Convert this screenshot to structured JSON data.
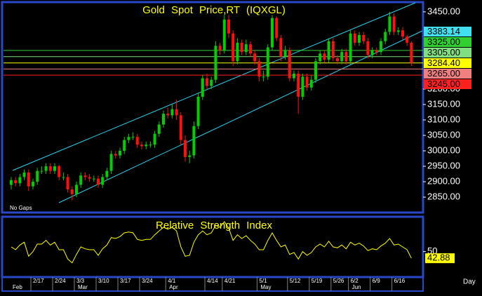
{
  "chart_data": [
    {
      "type": "candlestick",
      "title": "Gold Spot Price,RT (IQXGL)",
      "note": "No Gaps",
      "x_unit": "Day",
      "categories": [
        null,
        null,
        null,
        null,
        null,
        "2/17",
        null,
        null,
        null,
        null,
        "2/24",
        null,
        null,
        null,
        null,
        "3/3",
        null,
        null,
        null,
        null,
        "3/10",
        null,
        null,
        null,
        null,
        "3/17",
        null,
        null,
        null,
        null,
        "3/24",
        null,
        null,
        null,
        null,
        null,
        "4/1",
        null,
        null,
        null,
        null,
        null,
        null,
        null,
        null,
        "4/14",
        null,
        null,
        null,
        "4/21",
        null,
        null,
        null,
        null,
        null,
        null,
        null,
        "5/1",
        null,
        null,
        null,
        null,
        null,
        null,
        "5/12",
        null,
        null,
        null,
        null,
        "5/19",
        null,
        null,
        null,
        null,
        "5/26",
        null,
        null,
        null,
        "6/2",
        null,
        null,
        null,
        null,
        "6/9",
        null,
        null,
        null,
        null,
        "6/16",
        null,
        null,
        null,
        null
      ],
      "months": [
        "Feb",
        null,
        null,
        null,
        null,
        null,
        null,
        null,
        null,
        null,
        null,
        null,
        null,
        null,
        null,
        "Mar",
        null,
        null,
        null,
        null,
        null,
        null,
        null,
        null,
        null,
        null,
        null,
        null,
        null,
        null,
        null,
        null,
        null,
        null,
        null,
        null,
        "Apr",
        null,
        null,
        null,
        null,
        null,
        null,
        null,
        null,
        null,
        null,
        null,
        null,
        null,
        null,
        null,
        null,
        null,
        null,
        null,
        null,
        "May",
        null,
        null,
        null,
        null,
        null,
        null,
        null,
        null,
        null,
        null,
        null,
        null,
        null,
        null,
        null,
        null,
        null,
        null,
        null,
        null,
        "Jun",
        null,
        null,
        null,
        null,
        null,
        null,
        null,
        null,
        null,
        null,
        null,
        null,
        null,
        null
      ],
      "open": [
        2890,
        2905,
        2895,
        2915,
        2930,
        2885,
        2900,
        2935,
        2935,
        2950,
        2935,
        2950,
        2915,
        2915,
        2875,
        2860,
        2890,
        2920,
        2915,
        2910,
        2910,
        2890,
        2915,
        2935,
        2990,
        2985,
        3000,
        3035,
        3045,
        3045,
        3020,
        3015,
        3020,
        3020,
        3055,
        3085,
        3120,
        3115,
        3135,
        3115,
        3035,
        2980,
        2985,
        3080,
        3175,
        3235,
        3210,
        3230,
        3340,
        3325,
        3425,
        3380,
        3290,
        3350,
        3320,
        3345,
        3315,
        3290,
        3240,
        3240,
        3335,
        3430,
        3365,
        3305,
        3325,
        3235,
        3250,
        3175,
        3240,
        3205,
        3230,
        3290,
        3315,
        3295,
        3355,
        3300,
        3290,
        3320,
        3290,
        3380,
        3350,
        3375,
        3355,
        3310,
        3325,
        3320,
        3355,
        3385,
        3435,
        3385,
        3390,
        3370,
        3350
      ],
      "high": [
        2915,
        2915,
        2925,
        2940,
        2940,
        2910,
        2945,
        2950,
        2960,
        2960,
        2960,
        2955,
        2930,
        2925,
        2885,
        2900,
        2930,
        2930,
        2925,
        2920,
        2920,
        2925,
        2945,
        3000,
        3000,
        3010,
        3045,
        3055,
        3060,
        3055,
        3030,
        3030,
        3030,
        3065,
        3095,
        3130,
        3140,
        3150,
        3165,
        3125,
        3050,
        3000,
        3095,
        3185,
        3245,
        3250,
        3240,
        3355,
        3350,
        3440,
        3440,
        3390,
        3365,
        3360,
        3360,
        3355,
        3325,
        3300,
        3260,
        3345,
        3440,
        3435,
        3375,
        3340,
        3335,
        3260,
        3260,
        3250,
        3250,
        3245,
        3300,
        3325,
        3325,
        3365,
        3365,
        3310,
        3330,
        3330,
        3390,
        3390,
        3385,
        3385,
        3365,
        3335,
        3335,
        3365,
        3395,
        3450,
        3445,
        3400,
        3400,
        3375,
        3355
      ],
      "low": [
        2875,
        2885,
        2885,
        2905,
        2870,
        2875,
        2890,
        2925,
        2925,
        2925,
        2925,
        2905,
        2905,
        2865,
        2840,
        2850,
        2880,
        2905,
        2900,
        2900,
        2880,
        2880,
        2905,
        2925,
        2975,
        2975,
        2990,
        3025,
        3035,
        3010,
        3005,
        3005,
        3010,
        3010,
        3045,
        3075,
        3105,
        3105,
        3100,
        3020,
        2965,
        2960,
        2975,
        3070,
        3165,
        3200,
        3200,
        3220,
        3310,
        3315,
        3365,
        3275,
        3280,
        3310,
        3310,
        3305,
        3280,
        3225,
        3225,
        3230,
        3325,
        3355,
        3290,
        3295,
        3225,
        3225,
        3120,
        3165,
        3195,
        3195,
        3220,
        3280,
        3285,
        3285,
        3290,
        3280,
        3280,
        3280,
        3280,
        3340,
        3340,
        3345,
        3300,
        3300,
        3310,
        3310,
        3345,
        3375,
        3375,
        3375,
        3360,
        3340,
        3275
      ],
      "close": [
        2905,
        2895,
        2915,
        2930,
        2885,
        2900,
        2935,
        2935,
        2950,
        2935,
        2950,
        2915,
        2915,
        2875,
        2860,
        2890,
        2920,
        2915,
        2910,
        2910,
        2890,
        2915,
        2935,
        2990,
        2985,
        3000,
        3035,
        3045,
        3045,
        3020,
        3015,
        3020,
        3020,
        3055,
        3085,
        3120,
        3115,
        3135,
        3115,
        3035,
        2980,
        2985,
        3080,
        3175,
        3235,
        3210,
        3230,
        3340,
        3325,
        3425,
        3380,
        3290,
        3350,
        3320,
        3345,
        3315,
        3290,
        3240,
        3240,
        3335,
        3430,
        3365,
        3305,
        3325,
        3235,
        3250,
        3175,
        3240,
        3205,
        3230,
        3290,
        3315,
        3295,
        3355,
        3300,
        3290,
        3320,
        3290,
        3380,
        3350,
        3375,
        3355,
        3310,
        3325,
        3320,
        3355,
        3385,
        3435,
        3385,
        3390,
        3370,
        3350,
        3284.4
      ],
      "up_color": "#00d000",
      "down_color": "#ff1010",
      "ylim": [
        2807,
        3477
      ],
      "yticks": [
        {
          "value": 3450,
          "label": "3450.00"
        },
        {
          "value": 3200,
          "label": "3200.00"
        },
        {
          "value": 3150,
          "label": "3150.00"
        },
        {
          "value": 3100,
          "label": "3100.00"
        },
        {
          "value": 3050,
          "label": "3050.00"
        },
        {
          "value": 3000,
          "label": "3000.00"
        },
        {
          "value": 2950,
          "label": "2950.00"
        },
        {
          "value": 2900,
          "label": "2900.00"
        },
        {
          "value": 2850,
          "label": "2850.00"
        }
      ],
      "channel_label": {
        "value": 3383.14,
        "label": "3383.14",
        "color": "#40e0f0"
      },
      "levels": [
        {
          "value": 3325,
          "label": "3325.00",
          "color": "#30d030"
        },
        {
          "value": 3305,
          "label": "3305.00",
          "color": "#80e080"
        },
        {
          "value": 3284.4,
          "label": "3284.40",
          "color": "#ffff00"
        },
        {
          "value": 3265,
          "label": "3265.00",
          "color": "#f08080"
        },
        {
          "value": 3245,
          "label": "3245.00",
          "color": "#ff2020"
        }
      ]
    },
    {
      "type": "line",
      "title": "Relative Strength Index",
      "color": "#ffff00",
      "values": [
        55,
        52,
        57,
        60,
        45,
        50,
        58,
        58,
        62,
        57,
        60,
        52,
        52,
        42,
        38,
        47,
        55,
        53,
        52,
        52,
        46,
        53,
        57,
        65,
        64,
        66,
        70,
        71,
        70,
        63,
        62,
        63,
        63,
        68,
        72,
        76,
        74,
        76,
        72,
        55,
        45,
        46,
        60,
        68,
        72,
        68,
        70,
        78,
        76,
        82,
        75,
        62,
        68,
        64,
        67,
        62,
        58,
        52,
        52,
        62,
        70,
        62,
        55,
        57,
        47,
        49,
        42,
        50,
        46,
        49,
        55,
        58,
        55,
        61,
        55,
        54,
        57,
        53,
        60,
        57,
        59,
        56,
        51,
        53,
        52,
        56,
        59,
        64,
        57,
        58,
        55,
        52,
        42.88
      ],
      "ylim": [
        25,
        85
      ],
      "yticks": [
        50
      ],
      "last_label": {
        "value": 42.88,
        "label": "42.88"
      }
    }
  ]
}
